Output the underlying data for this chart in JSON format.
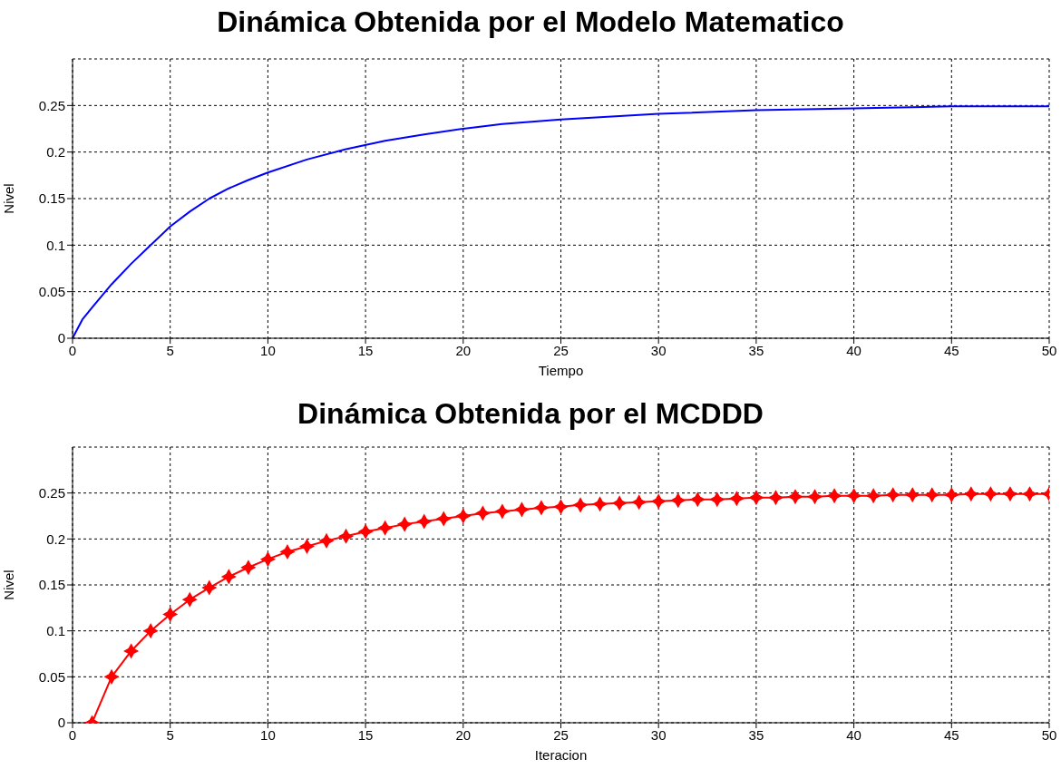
{
  "chart_data": [
    {
      "type": "line",
      "title": "Dinámica Obtenida por el Modelo Matematico",
      "xlabel": "Tiempo",
      "ylabel": "Nivel",
      "x": [
        0,
        0.5,
        1,
        2,
        3,
        4,
        5,
        6,
        7,
        8,
        9,
        10,
        12,
        14,
        16,
        18,
        20,
        22,
        25,
        30,
        35,
        40,
        45,
        50
      ],
      "series": [
        {
          "color": "#0000ff",
          "values": [
            0,
            0.02,
            0.033,
            0.058,
            0.08,
            0.1,
            0.12,
            0.136,
            0.15,
            0.161,
            0.17,
            0.178,
            0.192,
            0.203,
            0.212,
            0.219,
            0.225,
            0.23,
            0.235,
            0.241,
            0.245,
            0.247,
            0.249,
            0.249
          ]
        }
      ],
      "xlim": [
        0,
        50
      ],
      "xticks": [
        0,
        5,
        10,
        15,
        20,
        25,
        30,
        35,
        40,
        45,
        50
      ],
      "ylim": [
        0,
        0.3
      ],
      "yticks": [
        0,
        0.05,
        0.1,
        0.15,
        0.2,
        0.25
      ],
      "grid": true
    },
    {
      "type": "line",
      "title": "Dinámica Obtenida por el MCDDD",
      "xlabel": "Iteracion",
      "ylabel": "Nivel",
      "x": [
        1,
        2,
        3,
        4,
        5,
        6,
        7,
        8,
        9,
        10,
        11,
        12,
        13,
        14,
        15,
        16,
        17,
        18,
        19,
        20,
        21,
        22,
        23,
        24,
        25,
        26,
        27,
        28,
        29,
        30,
        31,
        32,
        33,
        34,
        35,
        36,
        37,
        38,
        39,
        40,
        41,
        42,
        43,
        44,
        45,
        46,
        47,
        48,
        49,
        50
      ],
      "series": [
        {
          "color": "#ff0000",
          "values": [
            0,
            0.05,
            0.078,
            0.1,
            0.118,
            0.134,
            0.147,
            0.159,
            0.169,
            0.178,
            0.186,
            0.192,
            0.198,
            0.203,
            0.208,
            0.212,
            0.216,
            0.219,
            0.222,
            0.225,
            0.228,
            0.23,
            0.232,
            0.234,
            0.235,
            0.237,
            0.238,
            0.239,
            0.24,
            0.241,
            0.242,
            0.243,
            0.243,
            0.244,
            0.245,
            0.245,
            0.246,
            0.246,
            0.247,
            0.247,
            0.247,
            0.248,
            0.248,
            0.248,
            0.248,
            0.249,
            0.249,
            0.249,
            0.249,
            0.249
          ]
        }
      ],
      "xlim": [
        0,
        50
      ],
      "xticks": [
        0,
        5,
        10,
        15,
        20,
        25,
        30,
        35,
        40,
        45,
        50
      ],
      "ylim": [
        0,
        0.3
      ],
      "yticks": [
        0,
        0.05,
        0.1,
        0.15,
        0.2,
        0.25
      ],
      "grid": true,
      "marker": "star"
    }
  ]
}
